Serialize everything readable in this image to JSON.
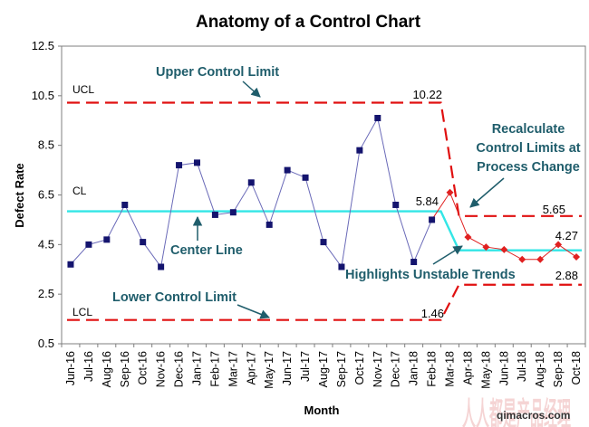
{
  "chart_data": {
    "type": "line",
    "title": "Anatomy of a Control Chart",
    "xlabel": "Month",
    "ylabel": "Defect Rate",
    "ylim": [
      0.5,
      12.5
    ],
    "yticks": [
      "0.5",
      "2.5",
      "4.5",
      "6.5",
      "8.5",
      "10.5",
      "12.5"
    ],
    "yticks_values": [
      0.5,
      2.5,
      4.5,
      6.5,
      8.5,
      10.5,
      12.5
    ],
    "categories": [
      "Jun-16",
      "Jul-16",
      "Aug-16",
      "Sep-16",
      "Oct-16",
      "Nov-16",
      "Dec-16",
      "Jan-17",
      "Feb-17",
      "Mar-17",
      "Apr-17",
      "May-17",
      "Jun-17",
      "Jul-17",
      "Aug-17",
      "Sep-17",
      "Oct-17",
      "Nov-17",
      "Dec-17",
      "Jan-18",
      "Feb-18",
      "Mar-18",
      "Apr-18",
      "May-18",
      "Jun-18",
      "Jul-18",
      "Aug-18",
      "Sep-18",
      "Oct-18"
    ],
    "values": [
      3.7,
      4.5,
      4.7,
      6.1,
      4.6,
      3.6,
      7.7,
      7.8,
      5.7,
      5.8,
      7.0,
      5.3,
      7.5,
      7.2,
      4.6,
      3.6,
      8.3,
      9.6,
      6.1,
      3.8,
      5.5,
      6.6,
      4.8,
      4.4,
      4.3,
      3.9,
      3.9,
      4.5,
      4.0
    ],
    "unstable_start_index": 21,
    "colors": {
      "stable_marker": "#14146e",
      "stable_line": "#6a6ab8",
      "unstable": "#e02020",
      "center_line": "#33e6e6",
      "limit": "#e01010"
    },
    "limits": {
      "phase1": {
        "ucl": 10.22,
        "cl": 5.84,
        "lcl": 1.46,
        "start_index": 0,
        "end_index": 20.5
      },
      "phase2": {
        "ucl": 5.65,
        "cl": 4.27,
        "lcl": 2.88,
        "start_index": 21.5,
        "end_index": 28.5
      }
    },
    "limit_labels": {
      "ucl": "UCL",
      "cl": "CL",
      "lcl": "LCL"
    },
    "value_labels": {
      "ucl1": "10.22",
      "cl1": "5.84",
      "lcl1": "1.46",
      "ucl2": "5.65",
      "cl2": "4.27",
      "lcl2": "2.88"
    },
    "annotations": {
      "upper": "Upper Control Limit",
      "center": "Center Line",
      "lower": "Lower Control Limit",
      "recalc1": "Recalculate",
      "recalc2": "Control Limits at",
      "recalc3": "Process Change",
      "unstable": "Highlights Unstable Trends"
    }
  },
  "watermark": {
    "text": "qimacros.com",
    "logo_text": "人人都是产品经理"
  }
}
